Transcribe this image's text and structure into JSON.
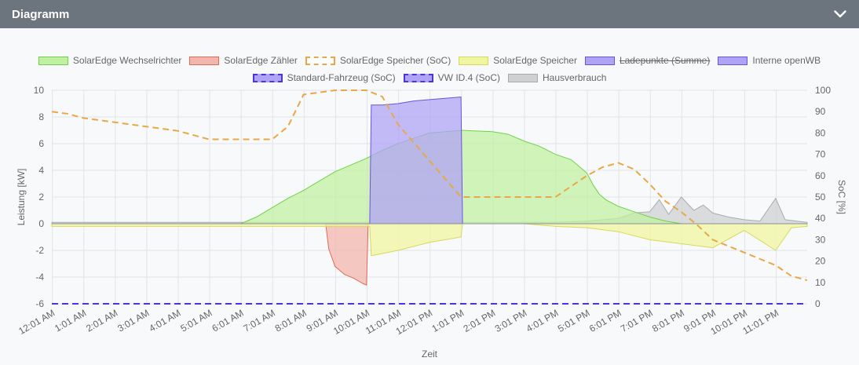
{
  "header": {
    "title": "Diagramm"
  },
  "legend": [
    {
      "label": "SolarEdge Wechselrichter",
      "fill": "#c2f0a3",
      "stroke": "#6fd24a",
      "dashed": false,
      "hidden": false
    },
    {
      "label": "SolarEdge Zähler",
      "fill": "#f3b6ad",
      "stroke": "#e06a5a",
      "dashed": false,
      "hidden": false
    },
    {
      "label": "SolarEdge Speicher (SoC)",
      "fill": "#ffffff",
      "stroke": "#e9a847",
      "dashed": true,
      "hidden": false
    },
    {
      "label": "SolarEdge Speicher",
      "fill": "#f0f5a2",
      "stroke": "#d7d95a",
      "dashed": false,
      "hidden": false
    },
    {
      "label": "Ladepunkte (Summe)",
      "fill": "#b0a3f5",
      "stroke": "#6a55e0",
      "dashed": false,
      "hidden": true
    },
    {
      "label": "Interne openWB",
      "fill": "#b0a3f5",
      "stroke": "#6a55e0",
      "dashed": false,
      "hidden": false
    },
    {
      "label": "Standard-Fahrzeug (SoC)",
      "fill": "#b0a3f5",
      "stroke": "#4b35d6",
      "dashed": true,
      "hidden": false
    },
    {
      "label": "VW ID.4 (SoC)",
      "fill": "#b0a3f5",
      "stroke": "#4b35d6",
      "dashed": true,
      "hidden": false
    },
    {
      "label": "Hausverbrauch",
      "fill": "#cfd0d2",
      "stroke": "#a9abae",
      "dashed": false,
      "hidden": false
    }
  ],
  "chart_data": {
    "type": "area",
    "xlabel": "Zeit",
    "ylabel": "Leistung [kW]",
    "y2label": "SoC [%]",
    "ylim": [
      -6,
      10
    ],
    "y2lim": [
      0,
      100
    ],
    "yticks": [
      "-6",
      "-4",
      "-2",
      "0",
      "2",
      "4",
      "6",
      "8",
      "10"
    ],
    "y2ticks": [
      "0",
      "10",
      "20",
      "30",
      "40",
      "50",
      "60",
      "70",
      "80",
      "90",
      "100"
    ],
    "xlim": [
      0,
      24
    ],
    "xticks": [
      "12:01 AM",
      "1:01 AM",
      "2:01 AM",
      "3:01 AM",
      "4:01 AM",
      "5:01 AM",
      "6:01 AM",
      "7:01 AM",
      "8:01 AM",
      "9:01 AM",
      "10:01 AM",
      "11:01 AM",
      "12:01 PM",
      "1:01 PM",
      "2:01 PM",
      "3:01 PM",
      "4:01 PM",
      "5:01 PM",
      "6:01 PM",
      "7:01 PM",
      "8:01 PM",
      "9:01 PM",
      "10:01 PM",
      "11:01 PM"
    ],
    "grid": true,
    "legend_position": "top",
    "series": [
      {
        "name": "SolarEdge Wechselrichter",
        "axis": "left",
        "x": [
          0,
          6,
          6.5,
          7,
          7.5,
          8,
          8.5,
          9,
          9.5,
          10,
          10.5,
          11,
          11.5,
          12,
          12.5,
          13,
          13.5,
          14,
          14.5,
          15,
          15.5,
          16,
          16.5,
          17,
          17.2,
          17.4,
          17.6,
          18,
          18.5,
          19,
          19.5,
          20,
          24
        ],
        "y": [
          0,
          0,
          0.5,
          1.2,
          1.9,
          2.5,
          3.2,
          3.9,
          4.4,
          4.9,
          5.5,
          6.0,
          6.4,
          6.8,
          6.9,
          7.0,
          6.95,
          6.9,
          6.7,
          6.2,
          5.8,
          5.2,
          4.8,
          3.8,
          2.9,
          2.2,
          1.8,
          1.3,
          0.9,
          0.5,
          0.2,
          0,
          0
        ]
      },
      {
        "name": "SolarEdge Zähler",
        "axis": "left",
        "x": [
          0,
          8.7,
          8.8,
          9,
          9.3,
          9.6,
          9.9,
          10.0,
          10.05,
          24
        ],
        "y": [
          0,
          0,
          -1.9,
          -3.2,
          -3.8,
          -4.1,
          -4.5,
          -4.6,
          0,
          0
        ]
      },
      {
        "name": "SolarEdge Speicher",
        "axis": "left",
        "x": [
          0,
          10.1,
          10.15,
          11,
          12,
          13,
          13.05,
          15,
          16,
          17,
          18,
          19,
          20,
          21,
          22,
          23,
          23.5,
          24
        ],
        "y": [
          -0.2,
          -0.2,
          -2.4,
          -2.0,
          -1.4,
          -1.0,
          0,
          0,
          -0.2,
          -0.3,
          -0.6,
          -1.2,
          -1.5,
          -1.8,
          -0.5,
          -2.0,
          -0.3,
          -0.2
        ]
      },
      {
        "name": "Interne openWB",
        "axis": "left",
        "x": [
          0,
          10.1,
          10.15,
          10.5,
          11,
          11.5,
          12,
          12.5,
          13,
          13.05,
          24
        ],
        "y": [
          0,
          0,
          8.9,
          8.9,
          9.0,
          9.2,
          9.3,
          9.4,
          9.5,
          0,
          0
        ]
      },
      {
        "name": "Hausverbrauch",
        "axis": "left",
        "x": [
          0,
          6,
          10,
          13,
          16,
          17,
          18,
          18.5,
          19,
          19.3,
          19.6,
          20,
          20.4,
          20.7,
          21,
          21.5,
          22,
          22.5,
          23,
          23.3,
          24
        ],
        "y": [
          0.1,
          0.1,
          0.1,
          0.1,
          0.1,
          0.2,
          0.4,
          0.8,
          0.9,
          1.8,
          0.7,
          2.0,
          1.0,
          1.4,
          0.8,
          0.5,
          0.3,
          0.2,
          1.9,
          0.3,
          0.1
        ]
      },
      {
        "name": "SolarEdge Speicher (SoC)",
        "axis": "right",
        "x": [
          0,
          0.5,
          1,
          2,
          3,
          4,
          5,
          6,
          7,
          7.5,
          8,
          9,
          10,
          10.5,
          11,
          12,
          13,
          14,
          15,
          16,
          17,
          17.5,
          18,
          18.5,
          19,
          19.5,
          20,
          20.5,
          21,
          21.5,
          22,
          22.5,
          23,
          23.5,
          24
        ],
        "y": [
          90,
          89,
          87,
          85,
          83,
          81,
          77,
          77,
          77,
          83,
          98,
          100,
          100,
          97,
          84,
          67,
          50,
          50,
          50,
          50,
          60,
          64,
          66,
          63,
          56,
          48,
          43,
          37,
          30,
          27,
          24,
          21,
          18,
          13,
          11
        ]
      },
      {
        "name": "Standard-Fahrzeug (SoC)",
        "axis": "right",
        "x": [
          0,
          24
        ],
        "y": [
          0,
          0
        ]
      },
      {
        "name": "VW ID.4 (SoC)",
        "axis": "right",
        "x": [
          0,
          24
        ],
        "y": [
          0,
          0
        ]
      }
    ]
  }
}
